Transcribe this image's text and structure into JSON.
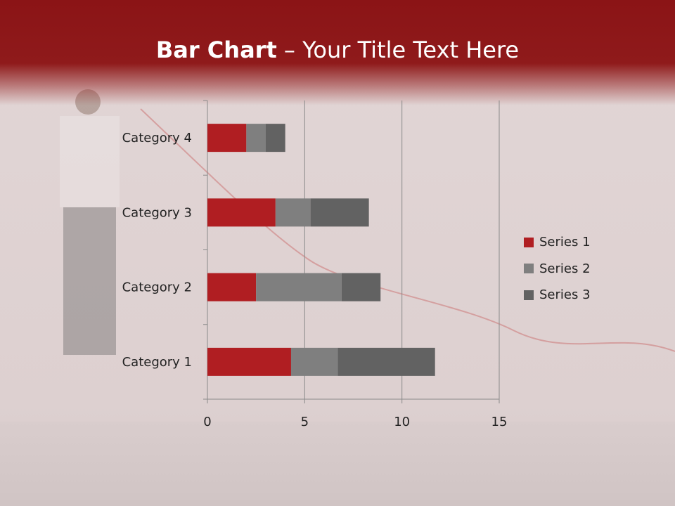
{
  "title": {
    "bold": "Bar Chart",
    "separator": " – ",
    "rest": "Your Title Text Here"
  },
  "chart_data": {
    "type": "bar",
    "orientation": "horizontal",
    "stacked": true,
    "categories": [
      "Category 1",
      "Category 2",
      "Category 3",
      "Category 4"
    ],
    "series": [
      {
        "name": "Series 1",
        "values": [
          4.3,
          2.5,
          3.5,
          2
        ],
        "color": "#b01e22"
      },
      {
        "name": "Series 2",
        "values": [
          2.4,
          4.4,
          1.8,
          1
        ],
        "color": "#7f7f7f"
      },
      {
        "name": "Series 3",
        "values": [
          5,
          2,
          3,
          1
        ],
        "color": "#626262"
      }
    ],
    "xlim": [
      0,
      15
    ],
    "xticks": [
      "0",
      "5",
      "10",
      "15"
    ],
    "grid": true,
    "legend": "right"
  }
}
